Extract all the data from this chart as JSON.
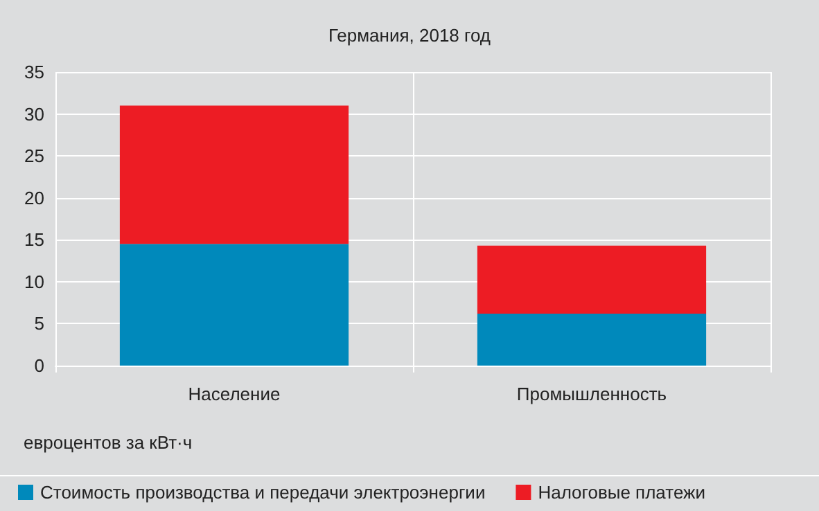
{
  "chart_data": {
    "type": "bar",
    "title": "Германия, 2018 год",
    "ylabel": "евроцентов за кВт·ч",
    "categories": [
      "Население",
      "Промышленность"
    ],
    "series": [
      {
        "name": "Стоимость производства и передачи электроэнергии",
        "color": "#0089bb",
        "values": [
          14.5,
          6.2
        ]
      },
      {
        "name": "Налоговые платежи",
        "color": "#ed1c24",
        "values": [
          16.5,
          8.1
        ]
      }
    ],
    "stacked": true,
    "ylim": [
      0,
      35
    ],
    "yticks": [
      0,
      5,
      10,
      15,
      20,
      25,
      30,
      35
    ],
    "grid": "y",
    "legend": "bottom left"
  }
}
